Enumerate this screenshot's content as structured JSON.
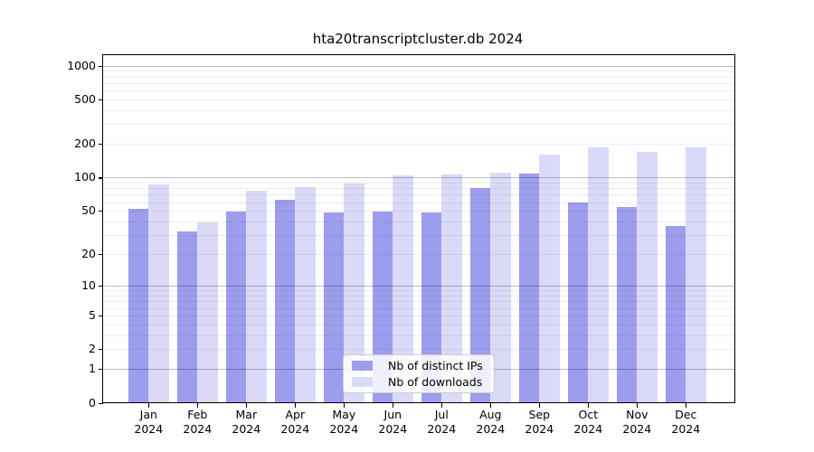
{
  "title": "hta20transcriptcluster.db 2024",
  "chart_data": {
    "type": "bar",
    "title": "hta20transcriptcluster.db 2024",
    "categories": [
      "Jan",
      "Feb",
      "Mar",
      "Apr",
      "May",
      "Jun",
      "Jul",
      "Aug",
      "Sep",
      "Oct",
      "Nov",
      "Dec"
    ],
    "year": "2024",
    "series": [
      {
        "name": "Nb of distinct IPs",
        "color": "#9d9dee",
        "values": [
          52,
          32,
          49,
          62,
          48,
          49,
          48,
          80,
          108,
          59,
          54,
          36
        ]
      },
      {
        "name": "Nb of downloads",
        "color": "#dadaf8",
        "values": [
          86,
          39,
          75,
          82,
          88,
          104,
          105,
          109,
          160,
          185,
          168,
          186
        ]
      }
    ],
    "yscale": "log10(1+x)",
    "ylim": [
      0,
      1255
    ],
    "yticks": [
      0,
      1,
      2,
      5,
      10,
      20,
      50,
      100,
      200,
      500,
      1000
    ],
    "ytick_labels": [
      "0",
      "1",
      "2",
      "5",
      "10",
      "20",
      "50",
      "100",
      "200",
      "500",
      "1000"
    ],
    "minor_gridlines": [
      2,
      3,
      4,
      5,
      6,
      7,
      8,
      9,
      20,
      30,
      40,
      50,
      60,
      70,
      80,
      90,
      200,
      300,
      400,
      500,
      600,
      700,
      800,
      900
    ],
    "major_gridlines": [
      1,
      10,
      100,
      1000
    ],
    "grid": true,
    "legend_position": "bottom-center",
    "colors": {
      "major_grid": "#bdbdbd",
      "minor_grid": "#efefef",
      "axis": "#000000"
    }
  }
}
